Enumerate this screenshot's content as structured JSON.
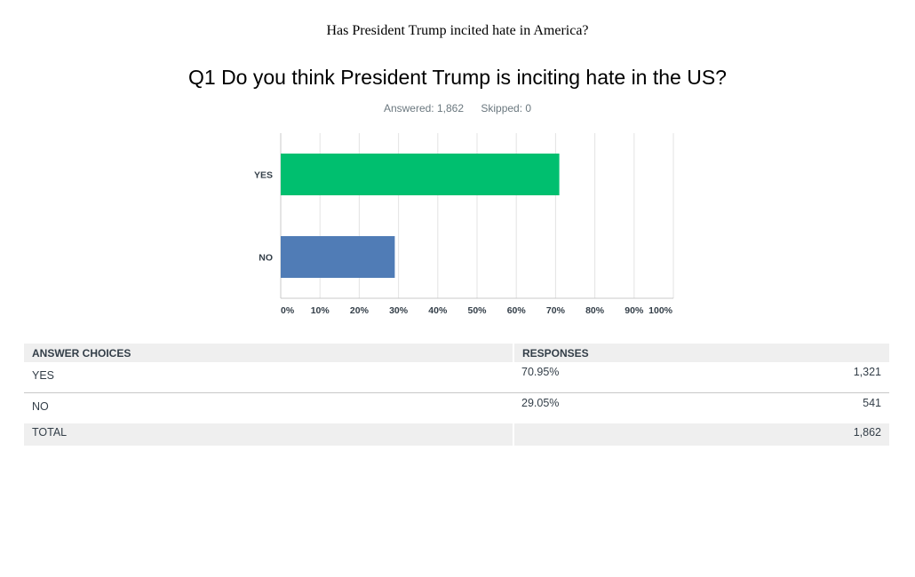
{
  "page": {
    "header": "Has President Trump incited hate in America?",
    "question": "Q1 Do you think President Trump is inciting hate in the US?",
    "answered_label": "Answered: 1,862",
    "skipped_label": "Skipped: 0"
  },
  "colors": {
    "yes": "#00bf6f",
    "no": "#507cb6",
    "grid": "#e3e3e3",
    "axis": "#c8c8c8",
    "text": "#333e48"
  },
  "chart_data": {
    "type": "bar",
    "orientation": "horizontal",
    "categories": [
      "YES",
      "NO"
    ],
    "values": [
      70.95,
      29.05
    ],
    "xlim": [
      0,
      100
    ],
    "xticks": [
      "0%",
      "10%",
      "20%",
      "30%",
      "40%",
      "50%",
      "60%",
      "70%",
      "80%",
      "90%",
      "100%"
    ],
    "grid": true,
    "title": "",
    "xlabel": "",
    "ylabel": ""
  },
  "table": {
    "headers": [
      "ANSWER CHOICES",
      "RESPONSES"
    ],
    "rows": [
      {
        "choice": "YES",
        "percent": "70.95%",
        "count": "1,321"
      },
      {
        "choice": "NO",
        "percent": "29.05%",
        "count": "541"
      }
    ],
    "total_label": "TOTAL",
    "total_count": "1,862"
  }
}
